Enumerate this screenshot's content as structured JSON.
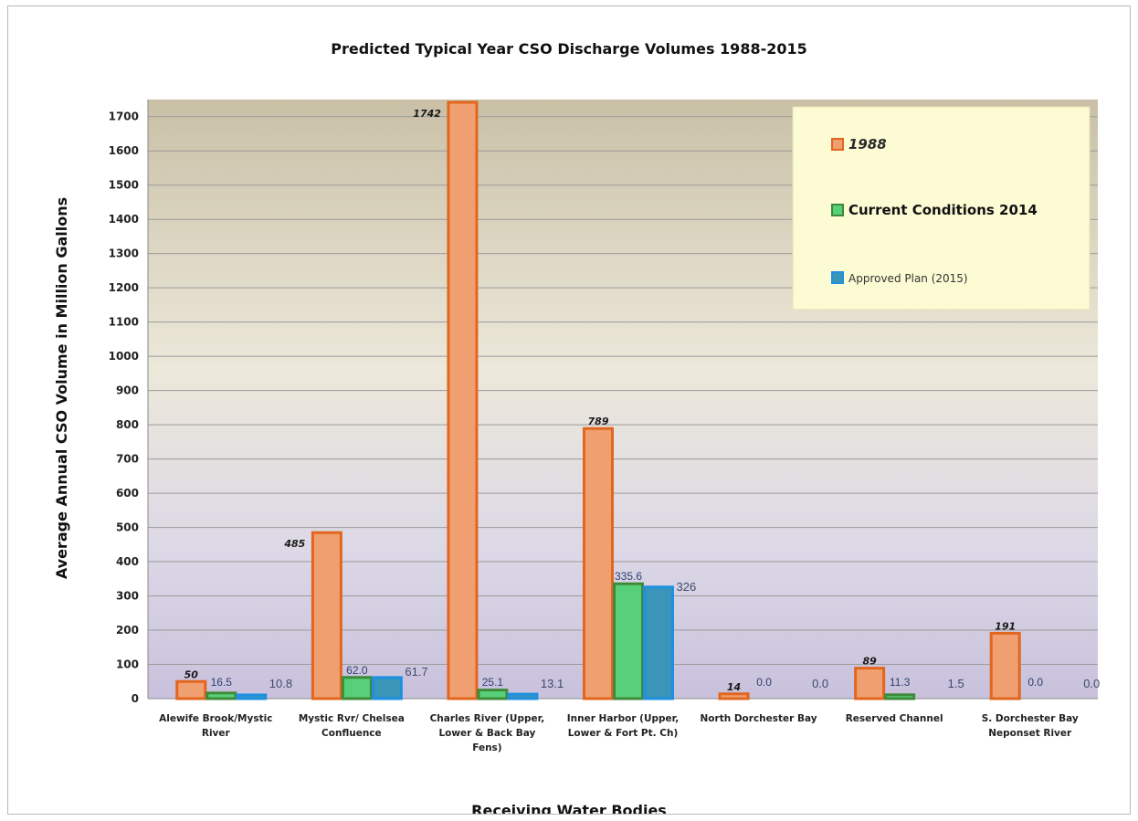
{
  "chart_data": {
    "type": "bar",
    "title": "Predicted Typical Year  CSO Discharge Volumes 1988-2015",
    "xlabel": "Receiving Water Bodies",
    "ylabel": "Average Annual CSO Volume in Million Gallons",
    "ylim": [
      0,
      1750
    ],
    "yticks": [
      0,
      100,
      200,
      300,
      400,
      500,
      600,
      700,
      800,
      900,
      1000,
      1100,
      1200,
      1300,
      1400,
      1500,
      1600,
      1700
    ],
    "grid": true,
    "legend_position": "top-right",
    "categories": [
      [
        "Alewife Brook/Mystic",
        "River"
      ],
      [
        "Mystic Rvr/ Chelsea",
        "Confluence"
      ],
      [
        "Charles River (Upper,",
        "Lower & Back Bay",
        "Fens)"
      ],
      [
        "Inner Harbor (Upper,",
        "Lower & Fort Pt. Ch)"
      ],
      [
        "North Dorchester Bay"
      ],
      [
        "Reserved Channel"
      ],
      [
        "S. Dorchester Bay",
        "Neponset River"
      ]
    ],
    "series": [
      {
        "name": "1988",
        "color": "#f0a070",
        "border": "#e2661e",
        "values": [
          50,
          485,
          1742,
          789,
          14,
          89,
          191
        ],
        "labels": [
          "50",
          "485",
          "1742",
          "789",
          "14",
          "89",
          "191"
        ]
      },
      {
        "name": "Current Conditions 2014",
        "color": "#58d07a",
        "border": "#3f8a3a",
        "values": [
          16.5,
          62.0,
          25.1,
          335.6,
          0.0,
          11.3,
          0.0
        ],
        "labels": [
          "16.5",
          "62.0",
          "25.1",
          "335.6",
          "0.0",
          "11.3",
          "0.0"
        ]
      },
      {
        "name": "Approved Plan (2015)",
        "color": "#3a95b8",
        "border": "#1e90e0",
        "values": [
          10.8,
          61.7,
          13.1,
          326,
          0.0,
          1.5,
          0.0
        ],
        "labels": [
          "10.8",
          "61.7",
          "13.1",
          "326",
          "0.0",
          "1.5",
          "0.0"
        ]
      }
    ]
  }
}
